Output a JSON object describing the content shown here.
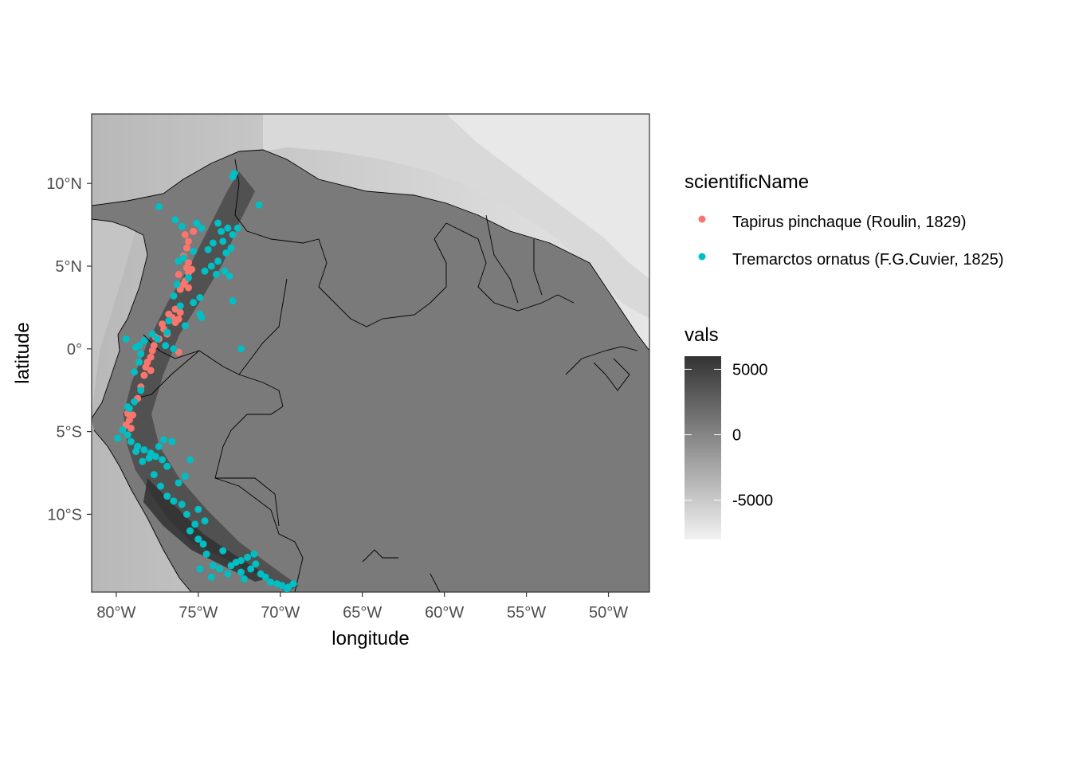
{
  "chart_data": {
    "type": "scatter",
    "title": "",
    "xlabel": "longitude",
    "ylabel": "latitude",
    "xlim": [
      -81.5,
      -47.5
    ],
    "ylim": [
      -14.7,
      14.2
    ],
    "x_ticks": [
      {
        "value": -80,
        "label": "80°W"
      },
      {
        "value": -75,
        "label": "75°W"
      },
      {
        "value": -70,
        "label": "70°W"
      },
      {
        "value": -65,
        "label": "65°W"
      },
      {
        "value": -60,
        "label": "60°W"
      },
      {
        "value": -55,
        "label": "55°W"
      },
      {
        "value": -50,
        "label": "50°W"
      }
    ],
    "y_ticks": [
      {
        "value": 10,
        "label": "10°N"
      },
      {
        "value": 5,
        "label": "5°N"
      },
      {
        "value": 0,
        "label": "0°"
      },
      {
        "value": -5,
        "label": "5°S"
      },
      {
        "value": -10,
        "label": "10°S"
      }
    ],
    "background": "elevation raster (grayscale) with country borders",
    "grid": false,
    "legend_position": "right",
    "color_legend": {
      "title": "scientificName",
      "entries": [
        {
          "label": "Tapirus pinchaque (Roulin, 1829)",
          "color": "#F8766D"
        },
        {
          "label": "Tremarctos ornatus (F.G.Cuvier, 1825)",
          "color": "#00BFC4"
        }
      ]
    },
    "fill_legend": {
      "title": "vals",
      "ticks": [
        {
          "value": 5000,
          "label": "5000"
        },
        {
          "value": 0,
          "label": "0"
        },
        {
          "value": -5000,
          "label": "-5000"
        }
      ],
      "range": [
        -8000,
        6000
      ],
      "low_color": "#f2f2f2",
      "high_color": "#333333"
    },
    "series": [
      {
        "name": "Tapirus pinchaque (Roulin, 1829)",
        "color": "#F8766D",
        "points": [
          [
            -75.8,
            6.9
          ],
          [
            -75.3,
            7.1
          ],
          [
            -75.6,
            6.5
          ],
          [
            -75.9,
            5.6
          ],
          [
            -75.6,
            5.2
          ],
          [
            -75.4,
            4.8
          ],
          [
            -75.6,
            4.6
          ],
          [
            -75.7,
            4.9
          ],
          [
            -75.9,
            3.9
          ],
          [
            -75.6,
            3.7
          ],
          [
            -76.1,
            3.6
          ],
          [
            -75.8,
            4.1
          ],
          [
            -76.4,
            2.4
          ],
          [
            -76.1,
            2.2
          ],
          [
            -76.6,
            1.9
          ],
          [
            -76.2,
            1.8
          ],
          [
            -76.8,
            2.1
          ],
          [
            -76.4,
            1.6
          ],
          [
            -77.1,
            1.2
          ],
          [
            -76.9,
            0.9
          ],
          [
            -77.4,
            0.6
          ],
          [
            -77.6,
            0.7
          ],
          [
            -77.7,
            0.2
          ],
          [
            -77.8,
            -0.1
          ],
          [
            -77.9,
            -0.5
          ],
          [
            -78.1,
            -0.8
          ],
          [
            -78.2,
            -1.1
          ],
          [
            -77.9,
            -1.3
          ],
          [
            -78.3,
            -1.6
          ],
          [
            -78.5,
            -2.3
          ],
          [
            -78.7,
            -3.0
          ],
          [
            -79.0,
            -4.0
          ],
          [
            -79.2,
            -4.3
          ],
          [
            -79.4,
            -4.6
          ],
          [
            -79.1,
            -4.8
          ],
          [
            -79.3,
            -3.9
          ],
          [
            -76.2,
            -0.2
          ],
          [
            -77.2,
            1.5
          ],
          [
            -75.7,
            6.1
          ],
          [
            -76.2,
            4.5
          ]
        ]
      },
      {
        "name": "Tremarctos ornatus (F.G.Cuvier, 1825)",
        "color": "#00BFC4",
        "points": [
          [
            -72.8,
            10.6
          ],
          [
            -72.9,
            10.4
          ],
          [
            -71.3,
            8.7
          ],
          [
            -77.4,
            8.6
          ],
          [
            -76.4,
            7.8
          ],
          [
            -76.0,
            7.4
          ],
          [
            -75.1,
            7.6
          ],
          [
            -74.8,
            7.3
          ],
          [
            -73.8,
            7.6
          ],
          [
            -73.2,
            7.3
          ],
          [
            -72.6,
            7.3
          ],
          [
            -72.9,
            6.9
          ],
          [
            -73.5,
            6.5
          ],
          [
            -73.0,
            6.1
          ],
          [
            -73.3,
            5.8
          ],
          [
            -73.8,
            5.3
          ],
          [
            -74.2,
            5.0
          ],
          [
            -74.6,
            4.7
          ],
          [
            -73.9,
            4.5
          ],
          [
            -73.4,
            4.7
          ],
          [
            -73.1,
            4.4
          ],
          [
            -74.4,
            6.0
          ],
          [
            -74.1,
            6.4
          ],
          [
            -75.9,
            5.5
          ],
          [
            -75.3,
            5.9
          ],
          [
            -76.2,
            5.3
          ],
          [
            -75.6,
            4.3
          ],
          [
            -76.3,
            3.9
          ],
          [
            -76.5,
            3.2
          ],
          [
            -76.1,
            2.6
          ],
          [
            -75.3,
            2.8
          ],
          [
            -74.9,
            2.1
          ],
          [
            -75.8,
            1.4
          ],
          [
            -74.8,
            1.9
          ],
          [
            -76.8,
            1.7
          ],
          [
            -76.9,
            1.0
          ],
          [
            -77.5,
            0.6
          ],
          [
            -77.8,
            0.9
          ],
          [
            -78.3,
            0.5
          ],
          [
            -78.6,
            0.2
          ],
          [
            -78.8,
            0.1
          ],
          [
            -78.5,
            -0.3
          ],
          [
            -79.4,
            0.6
          ],
          [
            -78.6,
            -0.8
          ],
          [
            -78.9,
            -1.4
          ],
          [
            -78.5,
            -2.5
          ],
          [
            -78.9,
            -3.2
          ],
          [
            -79.2,
            -3.6
          ],
          [
            -79.6,
            -4.9
          ],
          [
            -79.3,
            -5.2
          ],
          [
            -79.1,
            -5.6
          ],
          [
            -78.7,
            -5.9
          ],
          [
            -78.3,
            -6.1
          ],
          [
            -77.9,
            -6.3
          ],
          [
            -77.6,
            -6.5
          ],
          [
            -77.2,
            -6.7
          ],
          [
            -78.0,
            -6.6
          ],
          [
            -78.4,
            -6.8
          ],
          [
            -77.4,
            -5.9
          ],
          [
            -77.1,
            -5.5
          ],
          [
            -76.6,
            -5.6
          ],
          [
            -77.7,
            -7.6
          ],
          [
            -77.3,
            -8.3
          ],
          [
            -76.9,
            -8.9
          ],
          [
            -76.2,
            -8.1
          ],
          [
            -75.8,
            -7.7
          ],
          [
            -75.5,
            -6.7
          ],
          [
            -76.5,
            -9.2
          ],
          [
            -76.0,
            -9.4
          ],
          [
            -75.7,
            -10.0
          ],
          [
            -75.2,
            -10.6
          ],
          [
            -75.5,
            -11.0
          ],
          [
            -75.0,
            -11.5
          ],
          [
            -74.7,
            -11.8
          ],
          [
            -74.5,
            -12.4
          ],
          [
            -74.9,
            -13.3
          ],
          [
            -74.1,
            -13.1
          ],
          [
            -73.7,
            -13.3
          ],
          [
            -73.2,
            -13.6
          ],
          [
            -73.0,
            -13.1
          ],
          [
            -72.7,
            -12.9
          ],
          [
            -72.4,
            -13.5
          ],
          [
            -72.2,
            -13.9
          ],
          [
            -71.8,
            -13.3
          ],
          [
            -71.5,
            -13.0
          ],
          [
            -71.2,
            -13.6
          ],
          [
            -70.9,
            -13.8
          ],
          [
            -70.6,
            -14.1
          ],
          [
            -70.2,
            -14.2
          ],
          [
            -69.9,
            -14.3
          ],
          [
            -69.5,
            -14.4
          ],
          [
            -69.2,
            -14.2
          ],
          [
            -69.6,
            -14.5
          ],
          [
            -72.0,
            -12.6
          ],
          [
            -71.6,
            -12.4
          ],
          [
            -72.4,
            -12.8
          ],
          [
            -73.5,
            -12.2
          ],
          [
            -74.2,
            -13.8
          ],
          [
            -79.3,
            -3.5
          ],
          [
            -79.9,
            -5.4
          ],
          [
            -75.0,
            -9.7
          ],
          [
            -74.6,
            -10.4
          ],
          [
            -76.9,
            -7.1
          ],
          [
            -78.8,
            -6.2
          ],
          [
            -72.4,
            -0.0
          ],
          [
            -72.9,
            2.9
          ],
          [
            -73.6,
            7.1
          ],
          [
            -74.9,
            3.1
          ],
          [
            -77.0,
            0.2
          ],
          [
            -76.5,
            0.0
          ]
        ]
      }
    ]
  }
}
